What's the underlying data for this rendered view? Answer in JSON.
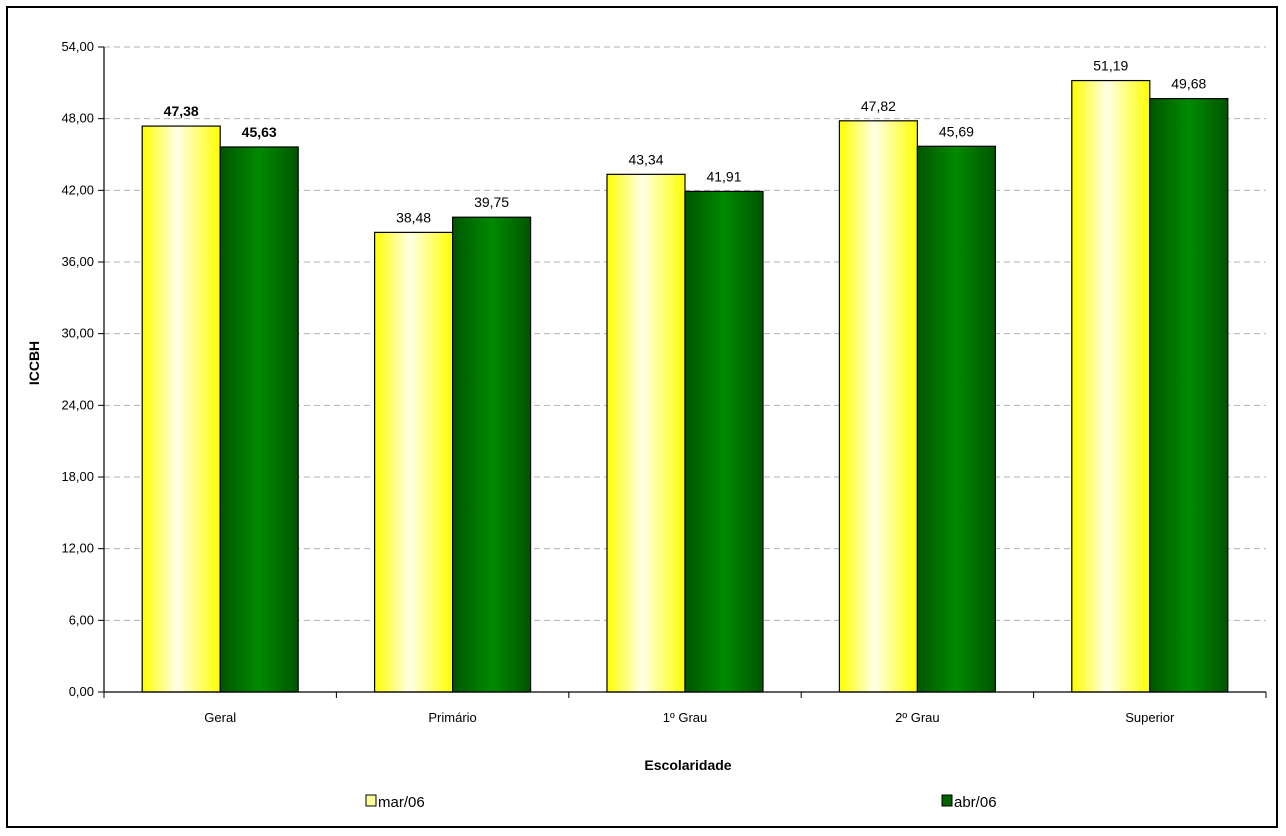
{
  "chart_data": {
    "type": "bar",
    "title": "",
    "xlabel": "Escolaridade",
    "ylabel": "ICCBH",
    "ylim": [
      0,
      54
    ],
    "yticks": [
      "0,00",
      "6,00",
      "12,00",
      "18,00",
      "24,00",
      "30,00",
      "36,00",
      "42,00",
      "48,00",
      "54,00"
    ],
    "grid": true,
    "legend_position": "bottom",
    "categories": [
      "Geral",
      "Primário",
      "1º Grau",
      "2º Grau",
      "Superior"
    ],
    "series": [
      {
        "name": "mar/06",
        "color": "#ffff33",
        "values": [
          47.38,
          38.48,
          43.34,
          47.82,
          51.19
        ],
        "labels": [
          "47,38",
          "38,48",
          "43,34",
          "47,82",
          "51,19"
        ]
      },
      {
        "name": "abr/06",
        "color": "#006400",
        "values": [
          45.63,
          39.75,
          41.91,
          45.69,
          49.68
        ],
        "labels": [
          "45,63",
          "39,75",
          "41,91",
          "45,69",
          "49,68"
        ]
      }
    ],
    "bold_labels_category": "Geral"
  }
}
